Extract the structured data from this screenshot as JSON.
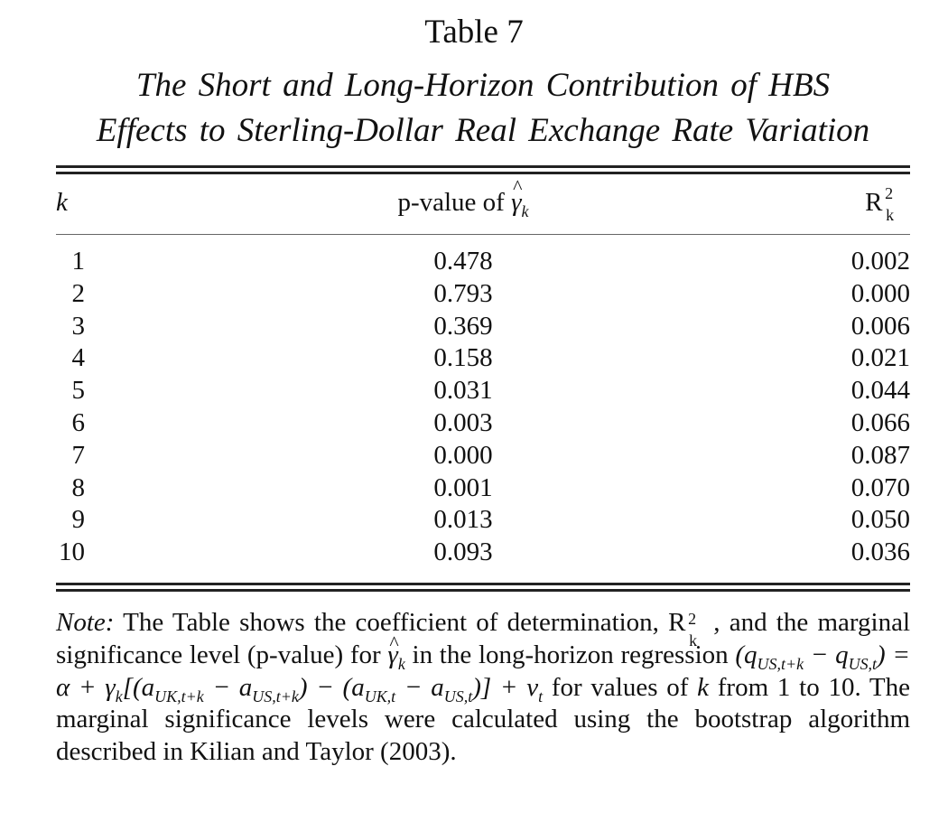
{
  "table": {
    "title": "Table 7",
    "subtitle_line1": "The Short and Long-Horizon Contribution of HBS",
    "subtitle_line2": "Effects to Sterling-Dollar Real Exchange Rate Variation",
    "columns": {
      "k": "k",
      "pvalue_prefix": "p-value of ",
      "gamma_symbol": "γ",
      "gamma_hat": "^",
      "gamma_sub": "k",
      "r_base": "R",
      "r_sup": "2",
      "r_sub": "k"
    },
    "rows": [
      {
        "k": "1",
        "p": "0.478",
        "r2": "0.002"
      },
      {
        "k": "2",
        "p": "0.793",
        "r2": "0.000"
      },
      {
        "k": "3",
        "p": "0.369",
        "r2": "0.006"
      },
      {
        "k": "4",
        "p": "0.158",
        "r2": "0.021"
      },
      {
        "k": "5",
        "p": "0.031",
        "r2": "0.044"
      },
      {
        "k": "6",
        "p": "0.003",
        "r2": "0.066"
      },
      {
        "k": "7",
        "p": "0.000",
        "r2": "0.087"
      },
      {
        "k": "8",
        "p": "0.001",
        "r2": "0.070"
      },
      {
        "k": "9",
        "p": "0.013",
        "r2": "0.050"
      },
      {
        "k": "10",
        "p": "0.093",
        "r2": "0.036"
      }
    ]
  },
  "note": {
    "label": "Note:",
    "text1": " The Table shows the coefficient of determination, ",
    "text2": ", and the marginal significance level (p-value) for ",
    "text3": " in the long-horizon regression ",
    "equation": "(q_{US,t+k} − q_{US,t}) = α + γ_k[(a_{UK,t+k} − a_{US,t+k}) − (a_{UK,t} − a_{US,t})] + v_t",
    "text4": " for values of ",
    "k_italic": "k",
    "text5": " from 1 to 10. The marginal significance levels were calculated using the bootstrap algorithm described in Kilian and Taylor (2003)."
  }
}
